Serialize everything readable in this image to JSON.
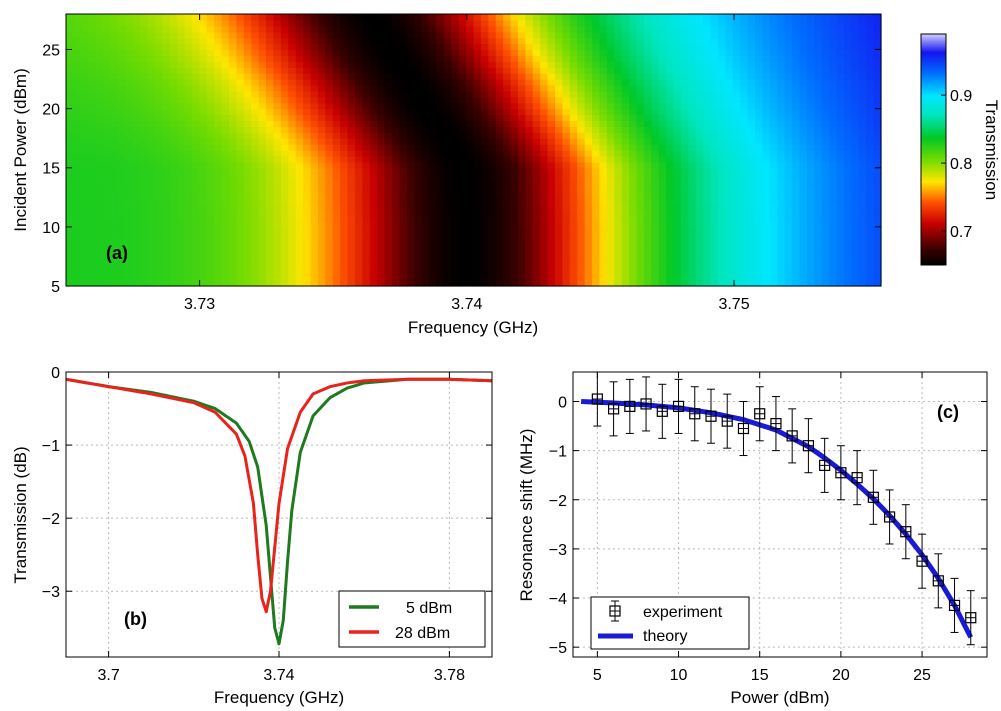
{
  "chart_data": [
    {
      "panel": "(a)",
      "type": "heatmap",
      "xlabel": "Frequency (GHz)",
      "ylabel": "Incident Power (dBm)",
      "xlim": [
        3.725,
        3.7555
      ],
      "ylim": [
        5,
        28
      ],
      "xticks": [
        3.73,
        3.74,
        3.75
      ],
      "xtick_labels": [
        "3.73",
        "3.74",
        "3.75"
      ],
      "yticks": [
        5,
        10,
        15,
        20,
        25
      ],
      "ytick_labels": [
        "5",
        "10",
        "15",
        "20",
        "25"
      ],
      "colorbar": {
        "label": "Transmission",
        "range": [
          0.65,
          0.99
        ],
        "ticks": [
          0.7,
          0.8,
          0.9
        ],
        "tick_labels": [
          "0.7",
          "0.8",
          "0.9"
        ],
        "colormap": "jet-with-dark-minimum"
      },
      "resonance_center_vs_power": {
        "power_dBm": [
          5,
          10,
          15,
          18,
          20,
          22,
          24,
          26,
          28
        ],
        "frequency_GHz": [
          3.74,
          3.74,
          3.7399,
          3.7391,
          3.7385,
          3.738,
          3.7374,
          3.7369,
          3.7364
        ]
      },
      "min_transmission": 0.65,
      "baseline_transmission_high_freq": 0.99,
      "baseline_transmission_low_freq": 0.86
    },
    {
      "panel": "(b)",
      "type": "line",
      "xlabel": "Frequency (GHz)",
      "ylabel": "Transmission (dB)",
      "xlim": [
        3.69,
        3.79
      ],
      "ylim": [
        -3.9,
        0
      ],
      "xticks": [
        3.7,
        3.74,
        3.78
      ],
      "xtick_labels": [
        "3.7",
        "3.74",
        "3.78"
      ],
      "yticks": [
        0,
        -1,
        -2,
        -3
      ],
      "ytick_labels": [
        "0",
        "−1",
        "−2",
        "−3"
      ],
      "grid": true,
      "legend_position": "bottom-right",
      "series": [
        {
          "name": "5 dBm",
          "color": "#1e7a1e",
          "x": [
            3.69,
            3.7,
            3.71,
            3.72,
            3.725,
            3.73,
            3.733,
            3.735,
            3.737,
            3.738,
            3.739,
            3.74,
            3.741,
            3.742,
            3.743,
            3.745,
            3.748,
            3.752,
            3.756,
            3.76,
            3.77,
            3.78,
            3.79
          ],
          "y": [
            -0.1,
            -0.2,
            -0.28,
            -0.4,
            -0.5,
            -0.7,
            -0.95,
            -1.3,
            -2.1,
            -2.8,
            -3.5,
            -3.72,
            -3.4,
            -2.6,
            -1.9,
            -1.1,
            -0.6,
            -0.35,
            -0.22,
            -0.15,
            -0.1,
            -0.1,
            -0.12
          ]
        },
        {
          "name": "28 dBm",
          "color": "#e8231c",
          "x": [
            3.69,
            3.7,
            3.71,
            3.72,
            3.725,
            3.73,
            3.732,
            3.734,
            3.735,
            3.736,
            3.737,
            3.738,
            3.739,
            3.74,
            3.742,
            3.745,
            3.748,
            3.752,
            3.756,
            3.76,
            3.77,
            3.78,
            3.79
          ],
          "y": [
            -0.1,
            -0.2,
            -0.3,
            -0.42,
            -0.55,
            -0.85,
            -1.15,
            -1.8,
            -2.5,
            -3.1,
            -3.28,
            -3.0,
            -2.4,
            -1.8,
            -1.05,
            -0.55,
            -0.3,
            -0.2,
            -0.15,
            -0.12,
            -0.1,
            -0.1,
            -0.12
          ]
        }
      ]
    },
    {
      "panel": "(c)",
      "type": "scatter",
      "xlabel": "Power (dBm)",
      "ylabel": "Resonance shift (MHz)",
      "xlim": [
        3.5,
        29
      ],
      "ylim": [
        -5.2,
        0.6
      ],
      "xticks": [
        5,
        10,
        15,
        20,
        25
      ],
      "xtick_labels": [
        "5",
        "10",
        "15",
        "20",
        "25"
      ],
      "yticks": [
        0,
        -1,
        -2,
        -3,
        -4,
        -5
      ],
      "ytick_labels": [
        "0",
        "−1",
        "−2",
        "−3",
        "−4",
        "−5"
      ],
      "grid": true,
      "legend_position": "bottom-left",
      "series": [
        {
          "name": "experiment",
          "marker": "square-plus",
          "color": "#000000",
          "x": [
            5,
            6,
            7,
            8,
            9,
            10,
            11,
            12,
            13,
            14,
            15,
            16,
            17,
            18,
            19,
            20,
            21,
            22,
            23,
            24,
            25,
            26,
            27,
            28
          ],
          "y": [
            0.05,
            -0.15,
            -0.1,
            -0.05,
            -0.2,
            -0.1,
            -0.25,
            -0.3,
            -0.4,
            -0.55,
            -0.25,
            -0.45,
            -0.7,
            -0.9,
            -1.3,
            -1.45,
            -1.55,
            -1.95,
            -2.35,
            -2.65,
            -3.25,
            -3.65,
            -4.15,
            -4.4
          ],
          "error": [
            0.55,
            0.55,
            0.55,
            0.55,
            0.55,
            0.55,
            0.55,
            0.55,
            0.55,
            0.55,
            0.55,
            0.55,
            0.55,
            0.55,
            0.55,
            0.55,
            0.55,
            0.55,
            0.55,
            0.55,
            0.55,
            0.55,
            0.55,
            0.55
          ]
        },
        {
          "name": "theory",
          "type": "line",
          "color": "#1a1ad6",
          "x": [
            4,
            6,
            8,
            10,
            12,
            14,
            16,
            18,
            19,
            20,
            21,
            22,
            23,
            24,
            25,
            26,
            27,
            28
          ],
          "y": [
            0.0,
            -0.03,
            -0.07,
            -0.13,
            -0.23,
            -0.37,
            -0.58,
            -0.92,
            -1.15,
            -1.4,
            -1.68,
            -1.98,
            -2.32,
            -2.7,
            -3.12,
            -3.6,
            -4.15,
            -4.8
          ]
        }
      ]
    }
  ]
}
